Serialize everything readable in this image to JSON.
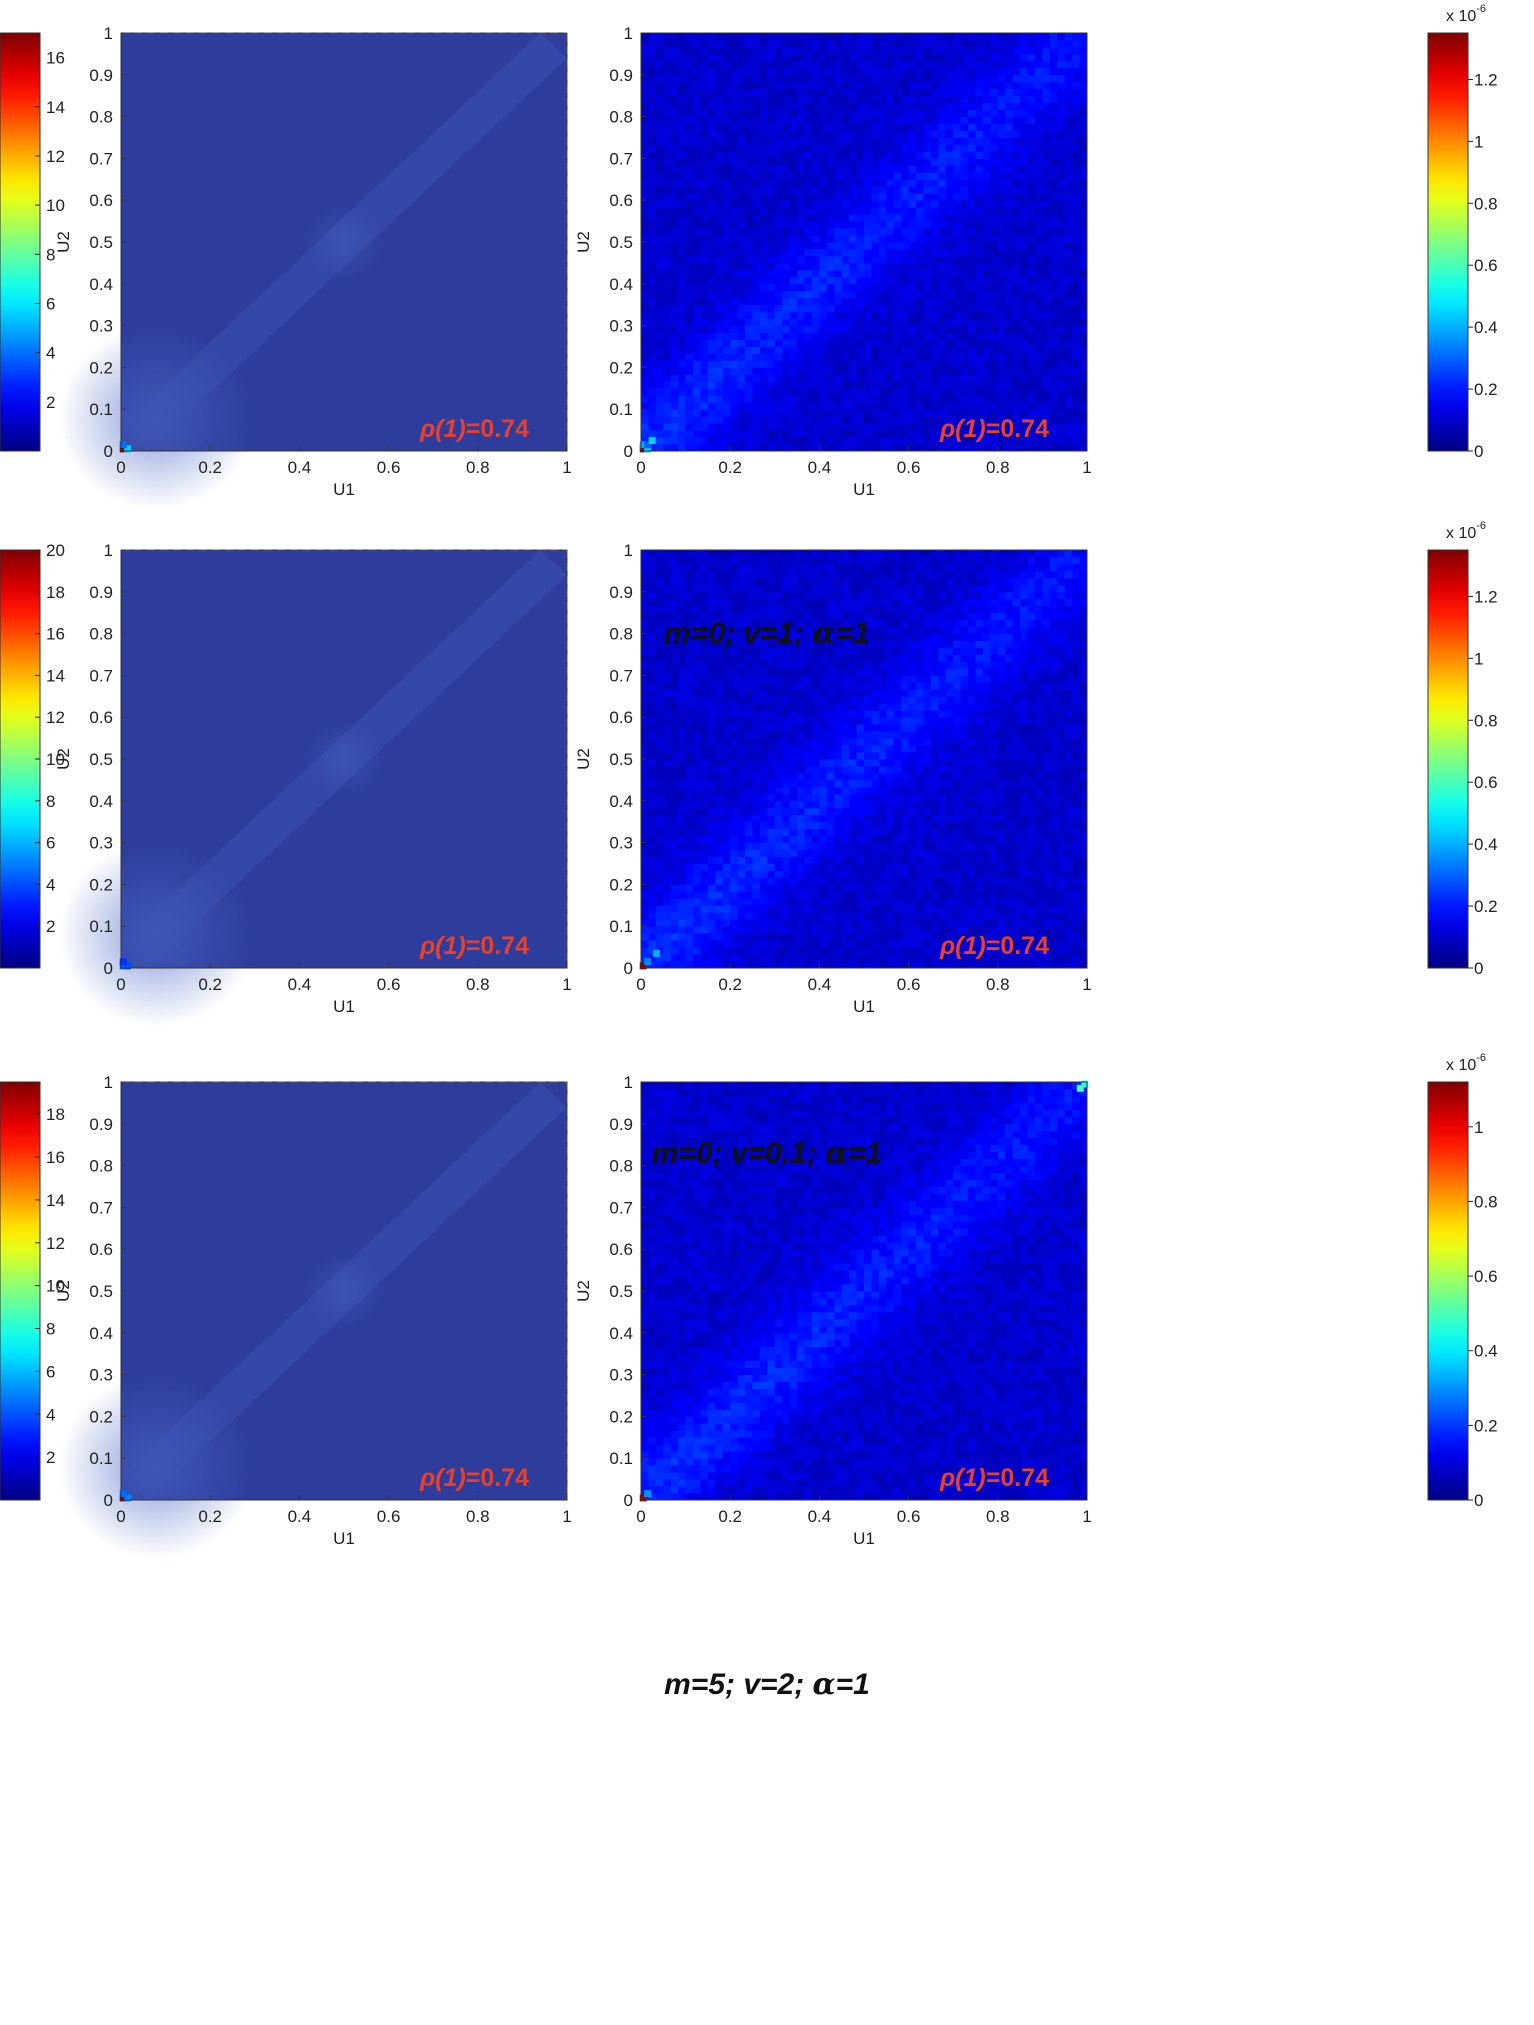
{
  "chart_data": [
    {
      "type": "heatmap",
      "row": 1,
      "col": 1,
      "xlabel": "U1",
      "ylabel": "U2",
      "xlim": [
        0,
        1
      ],
      "ylim": [
        0,
        1
      ],
      "xticks": [
        "0",
        "0.2",
        "0.4",
        "0.6",
        "0.8",
        "1"
      ],
      "yticks": [
        "0",
        "0.1",
        "0.2",
        "0.3",
        "0.4",
        "0.5",
        "0.6",
        "0.7",
        "0.8",
        "0.9",
        "1"
      ],
      "annotation": {
        "symbol": "ρ",
        "arg": "(1)",
        "value": "=0.74"
      },
      "colorbar": {
        "position": "left",
        "range": [
          0,
          17
        ],
        "ticks": [
          "2",
          "4",
          "6",
          "8",
          "10",
          "12",
          "14",
          "16"
        ],
        "tick_values": [
          2,
          4,
          6,
          8,
          10,
          12,
          14,
          16
        ],
        "exponent": ""
      },
      "pattern": "smooth",
      "hotspots": [
        {
          "x": 0.005,
          "y": 0.005,
          "value": 17.0
        },
        {
          "x": 0.015,
          "y": 0.005,
          "value": 5.5
        },
        {
          "x": 0.005,
          "y": 0.015,
          "value": 4.0
        }
      ]
    },
    {
      "type": "heatmap",
      "row": 1,
      "col": 2,
      "xlabel": "U1",
      "ylabel": "U2",
      "xlim": [
        0,
        1
      ],
      "ylim": [
        0,
        1
      ],
      "xticks": [
        "0",
        "0.2",
        "0.4",
        "0.6",
        "0.8",
        "1"
      ],
      "yticks": [
        "0",
        "0.1",
        "0.2",
        "0.3",
        "0.4",
        "0.5",
        "0.6",
        "0.7",
        "0.8",
        "0.9",
        "1"
      ],
      "annotation": {
        "symbol": "ρ",
        "arg": "(1)",
        "value": "=0.74"
      },
      "colorbar": {
        "position": "right",
        "range": [
          0,
          1.35
        ],
        "ticks": [
          "0",
          "0.2",
          "0.4",
          "0.6",
          "0.8",
          "1",
          "1.2"
        ],
        "tick_values": [
          0,
          0.2,
          0.4,
          0.6,
          0.8,
          1.0,
          1.2
        ],
        "exponent": "x 10",
        "exponent_power": "-6"
      },
      "pattern": "noisy",
      "hotspots": [
        {
          "x": 0.005,
          "y": 0.005,
          "value": 1.35
        },
        {
          "x": 0.015,
          "y": 0.005,
          "value": 0.45
        },
        {
          "x": 0.005,
          "y": 0.015,
          "value": 0.4
        },
        {
          "x": 0.015,
          "y": 0.015,
          "value": 0.3
        },
        {
          "x": 0.025,
          "y": 0.025,
          "value": 0.45
        }
      ]
    },
    {
      "type": "heatmap",
      "row": 2,
      "col": 1,
      "xlabel": "U1",
      "ylabel": "U2",
      "xlim": [
        0,
        1
      ],
      "ylim": [
        0,
        1
      ],
      "xticks": [
        "0",
        "0.2",
        "0.4",
        "0.6",
        "0.8",
        "1"
      ],
      "yticks": [
        "0",
        "0.1",
        "0.2",
        "0.3",
        "0.4",
        "0.5",
        "0.6",
        "0.7",
        "0.8",
        "0.9",
        "1"
      ],
      "annotation": {
        "symbol": "ρ",
        "arg": "(1)",
        "value": "=0.74"
      },
      "colorbar": {
        "position": "left",
        "range": [
          0,
          20
        ],
        "ticks": [
          "2",
          "4",
          "6",
          "8",
          "10",
          "12",
          "14",
          "16",
          "18",
          "20"
        ],
        "tick_values": [
          2,
          4,
          6,
          8,
          10,
          12,
          14,
          16,
          18,
          20
        ],
        "exponent": ""
      },
      "pattern": "smooth",
      "hotspots": [
        {
          "x": 0.005,
          "y": 0.005,
          "value": 4.5
        },
        {
          "x": 0.015,
          "y": 0.005,
          "value": 4.0
        },
        {
          "x": 0.005,
          "y": 0.015,
          "value": 3.5
        }
      ]
    },
    {
      "type": "heatmap",
      "row": 2,
      "col": 2,
      "xlabel": "U1",
      "ylabel": "U2",
      "xlim": [
        0,
        1
      ],
      "ylim": [
        0,
        1
      ],
      "xticks": [
        "0",
        "0.2",
        "0.4",
        "0.6",
        "0.8",
        "1"
      ],
      "yticks": [
        "0",
        "0.1",
        "0.2",
        "0.3",
        "0.4",
        "0.5",
        "0.6",
        "0.7",
        "0.8",
        "0.9",
        "1"
      ],
      "annotation": {
        "symbol": "ρ",
        "arg": "(1)",
        "value": "=0.74"
      },
      "colorbar": {
        "position": "right",
        "range": [
          0,
          1.35
        ],
        "ticks": [
          "0",
          "0.2",
          "0.4",
          "0.6",
          "0.8",
          "1",
          "1.2"
        ],
        "tick_values": [
          0,
          0.2,
          0.4,
          0.6,
          0.8,
          1.0,
          1.2
        ],
        "exponent": "x 10",
        "exponent_power": "-6"
      },
      "pattern": "noisy",
      "hotspots": [
        {
          "x": 0.005,
          "y": 0.005,
          "value": 1.35
        },
        {
          "x": 0.015,
          "y": 0.015,
          "value": 0.35
        },
        {
          "x": 0.035,
          "y": 0.035,
          "value": 0.4
        }
      ]
    },
    {
      "type": "heatmap",
      "row": 3,
      "col": 1,
      "xlabel": "U1",
      "ylabel": "U2",
      "xlim": [
        0,
        1
      ],
      "ylim": [
        0,
        1
      ],
      "xticks": [
        "0",
        "0.2",
        "0.4",
        "0.6",
        "0.8",
        "1"
      ],
      "yticks": [
        "0",
        "0.1",
        "0.2",
        "0.3",
        "0.4",
        "0.5",
        "0.6",
        "0.7",
        "0.8",
        "0.9",
        "1"
      ],
      "annotation": {
        "symbol": "ρ",
        "arg": "(1)",
        "value": "=0.74"
      },
      "colorbar": {
        "position": "left",
        "range": [
          0,
          19.5
        ],
        "ticks": [
          "2",
          "4",
          "6",
          "8",
          "10",
          "12",
          "14",
          "16",
          "18"
        ],
        "tick_values": [
          2,
          4,
          6,
          8,
          10,
          12,
          14,
          16,
          18
        ],
        "exponent": ""
      },
      "pattern": "smooth",
      "hotspots": [
        {
          "x": 0.005,
          "y": 0.005,
          "value": 19.5
        },
        {
          "x": 0.015,
          "y": 0.005,
          "value": 5.0
        },
        {
          "x": 0.005,
          "y": 0.015,
          "value": 4.5
        }
      ]
    },
    {
      "type": "heatmap",
      "row": 3,
      "col": 2,
      "xlabel": "U1",
      "ylabel": "U2",
      "xlim": [
        0,
        1
      ],
      "ylim": [
        0,
        1
      ],
      "xticks": [
        "0",
        "0.2",
        "0.4",
        "0.6",
        "0.8",
        "1"
      ],
      "yticks": [
        "0",
        "0.1",
        "0.2",
        "0.3",
        "0.4",
        "0.5",
        "0.6",
        "0.7",
        "0.8",
        "0.9",
        "1"
      ],
      "annotation": {
        "symbol": "ρ",
        "arg": "(1)",
        "value": "=0.74"
      },
      "colorbar": {
        "position": "right",
        "range": [
          0,
          1.12
        ],
        "ticks": [
          "0",
          "0.2",
          "0.4",
          "0.6",
          "0.8",
          "1"
        ],
        "tick_values": [
          0,
          0.2,
          0.4,
          0.6,
          0.8,
          1.0
        ],
        "exponent": "x 10",
        "exponent_power": "-6"
      },
      "pattern": "noisy",
      "hotspots": [
        {
          "x": 0.005,
          "y": 0.005,
          "value": 1.1
        },
        {
          "x": 0.015,
          "y": 0.015,
          "value": 0.3
        },
        {
          "x": 0.985,
          "y": 0.985,
          "value": 0.5
        },
        {
          "x": 0.995,
          "y": 0.995,
          "value": 0.45
        }
      ]
    }
  ],
  "captions": [
    {
      "pre": "m=0; v=1; ",
      "greek": "α",
      "post": "=1"
    },
    {
      "pre": "m=0; v=0.1; ",
      "greek": "α",
      "post": "=1"
    },
    {
      "pre": "m=5; v=2; ",
      "greek": "α",
      "post": "=1"
    }
  ],
  "colors": {
    "low": "#2e3d9c",
    "colormap": "jet"
  }
}
